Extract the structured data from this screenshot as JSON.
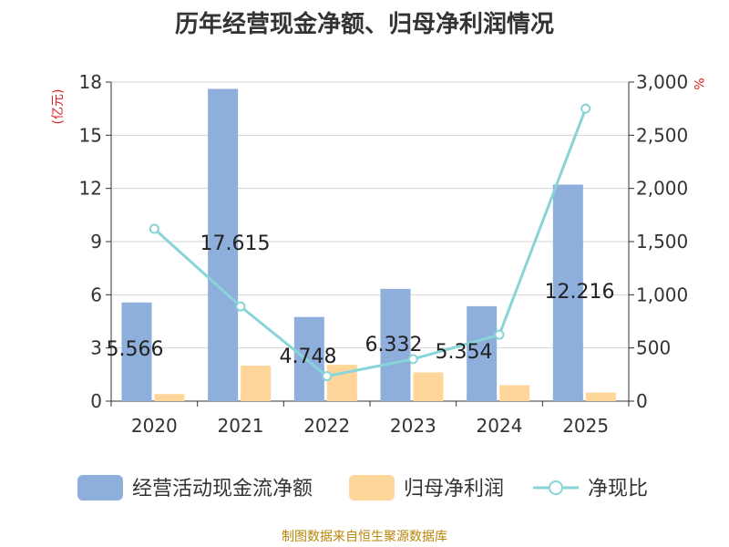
{
  "title": "历年经营现金净额、归母净利润情况",
  "source": "制图数据来自恒生聚源数据库",
  "chart_data": {
    "type": "bar",
    "categories": [
      "2020",
      "2021",
      "2022",
      "2023",
      "2024",
      "2025"
    ],
    "series": [
      {
        "name": "经营活动现金流净额",
        "kind": "bar",
        "axis": "left",
        "color": "#8eaedb",
        "values": [
          5.566,
          17.615,
          4.748,
          6.332,
          5.354,
          12.216
        ],
        "labels": [
          "5.566",
          "17.615",
          "4.748",
          "6.332",
          "5.354",
          "12.216"
        ]
      },
      {
        "name": "归母净利润",
        "kind": "bar",
        "axis": "left",
        "color": "#ffd699",
        "values": [
          0.4,
          2.0,
          2.05,
          1.62,
          0.9,
          0.48
        ]
      },
      {
        "name": "净现比",
        "kind": "line",
        "axis": "right",
        "color": "#88d4d8",
        "values": [
          1620,
          890,
          235,
          395,
          625,
          2750
        ]
      }
    ],
    "left_axis": {
      "label": "(亿元)",
      "ylim": [
        0,
        18
      ],
      "ticks": [
        0,
        3,
        6,
        9,
        12,
        15,
        18
      ],
      "tick_labels": [
        "0",
        "3",
        "6",
        "9",
        "12",
        "15",
        "18"
      ]
    },
    "right_axis": {
      "label": "%",
      "ylim": [
        0,
        3000
      ],
      "ticks": [
        0,
        500,
        1000,
        1500,
        2000,
        2500,
        3000
      ],
      "tick_labels": [
        "0",
        "500",
        "1,000",
        "1,500",
        "2,000",
        "2,500",
        "3,000"
      ]
    },
    "grid": true,
    "legend_position": "bottom"
  }
}
